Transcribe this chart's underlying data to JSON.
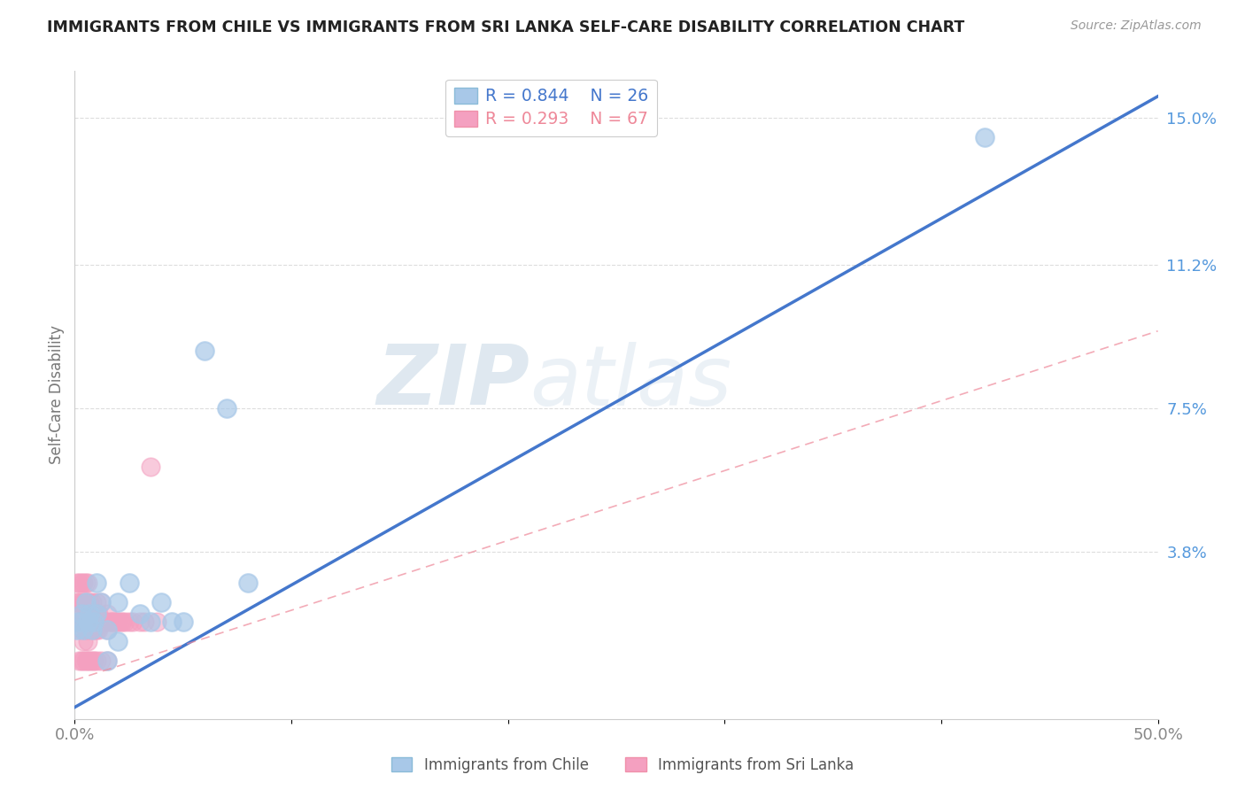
{
  "title": "IMMIGRANTS FROM CHILE VS IMMIGRANTS FROM SRI LANKA SELF-CARE DISABILITY CORRELATION CHART",
  "source": "Source: ZipAtlas.com",
  "ylabel": "Self-Care Disability",
  "xlim": [
    0.0,
    0.5
  ],
  "ylim": [
    -0.005,
    0.162
  ],
  "xticks": [
    0.0,
    0.1,
    0.2,
    0.3,
    0.4,
    0.5
  ],
  "xticklabels": [
    "0.0%",
    "",
    "",
    "",
    "",
    "50.0%"
  ],
  "yticks_right": [
    0.038,
    0.075,
    0.112,
    0.15
  ],
  "ytick_labels_right": [
    "3.8%",
    "7.5%",
    "11.2%",
    "15.0%"
  ],
  "chile_R": 0.844,
  "chile_N": 26,
  "srilanka_R": 0.293,
  "srilanka_N": 67,
  "chile_color": "#A8C8E8",
  "srilanka_color": "#F4A0C0",
  "chile_line_color": "#4477CC",
  "srilanka_line_color": "#EE8899",
  "watermark_zip": "ZIP",
  "watermark_atlas": "atlas",
  "chile_x": [
    0.001,
    0.002,
    0.003,
    0.004,
    0.005,
    0.006,
    0.007,
    0.008,
    0.009,
    0.01,
    0.012,
    0.015,
    0.02,
    0.025,
    0.03,
    0.035,
    0.04,
    0.045,
    0.05,
    0.06,
    0.07,
    0.08,
    0.01,
    0.015,
    0.42,
    0.02
  ],
  "chile_y": [
    0.018,
    0.02,
    0.022,
    0.018,
    0.025,
    0.02,
    0.022,
    0.018,
    0.02,
    0.022,
    0.025,
    0.01,
    0.025,
    0.03,
    0.022,
    0.02,
    0.025,
    0.02,
    0.02,
    0.09,
    0.075,
    0.03,
    0.03,
    0.018,
    0.145,
    0.015
  ],
  "srilanka_x": [
    0.001,
    0.001,
    0.001,
    0.002,
    0.002,
    0.002,
    0.003,
    0.003,
    0.003,
    0.003,
    0.004,
    0.004,
    0.004,
    0.005,
    0.005,
    0.005,
    0.005,
    0.006,
    0.006,
    0.006,
    0.006,
    0.007,
    0.007,
    0.007,
    0.008,
    0.008,
    0.008,
    0.009,
    0.009,
    0.01,
    0.01,
    0.01,
    0.011,
    0.011,
    0.012,
    0.012,
    0.013,
    0.014,
    0.015,
    0.015,
    0.016,
    0.017,
    0.018,
    0.019,
    0.02,
    0.021,
    0.022,
    0.023,
    0.025,
    0.027,
    0.03,
    0.032,
    0.035,
    0.038,
    0.002,
    0.003,
    0.004,
    0.004,
    0.005,
    0.006,
    0.006,
    0.007,
    0.008,
    0.009,
    0.01,
    0.012,
    0.015
  ],
  "srilanka_y": [
    0.02,
    0.025,
    0.03,
    0.02,
    0.025,
    0.03,
    0.018,
    0.022,
    0.025,
    0.03,
    0.02,
    0.025,
    0.03,
    0.018,
    0.022,
    0.025,
    0.03,
    0.018,
    0.022,
    0.025,
    0.03,
    0.018,
    0.022,
    0.025,
    0.018,
    0.022,
    0.025,
    0.018,
    0.022,
    0.018,
    0.022,
    0.025,
    0.018,
    0.022,
    0.02,
    0.025,
    0.02,
    0.02,
    0.018,
    0.022,
    0.02,
    0.02,
    0.02,
    0.02,
    0.02,
    0.02,
    0.02,
    0.02,
    0.02,
    0.02,
    0.02,
    0.02,
    0.06,
    0.02,
    0.01,
    0.01,
    0.01,
    0.015,
    0.01,
    0.01,
    0.015,
    0.01,
    0.01,
    0.01,
    0.01,
    0.01,
    0.01
  ],
  "grid_color": "#DDDDDD",
  "spine_color": "#CCCCCC",
  "tick_color": "#888888",
  "right_tick_color": "#5599DD"
}
